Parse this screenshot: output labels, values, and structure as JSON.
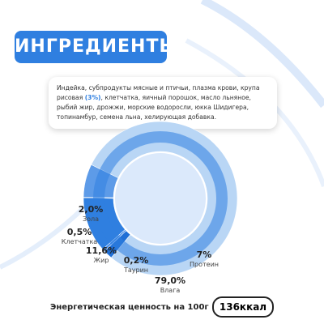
{
  "header": {
    "title": "ИНГРЕДИЕНТЫ"
  },
  "ingredients": [
    "Индейка, субпродукты мясные и птичьи, плазма крови, крупа рисовая ",
    "(3%)",
    ", клетчатка, яичный порошок, масло льняное, рыбий жир, дрожжи, морские водоросли, юкка Шидигера, топинамбур, семена льна, хелирующая добавка."
  ],
  "chart_data": {
    "type": "pie",
    "categories": [
      "Зола",
      "Клетчатка",
      "Жир",
      "Таурин",
      "Протеин",
      "Влага"
    ],
    "values": [
      2.0,
      0.5,
      11.6,
      0.2,
      7,
      79.0
    ],
    "value_labels": [
      "2,0%",
      "0,5%",
      "11,6%",
      "0,2%",
      "7%",
      "79,0%"
    ],
    "colors": [
      "#1f6fd6",
      "#3a86e8",
      "#2f7fe0",
      "#1f6fd6",
      "#5d9be8",
      "#b9d6f5"
    ]
  },
  "energy": {
    "label": "Энергетическая ценность на 100г",
    "value": "136ккал"
  }
}
